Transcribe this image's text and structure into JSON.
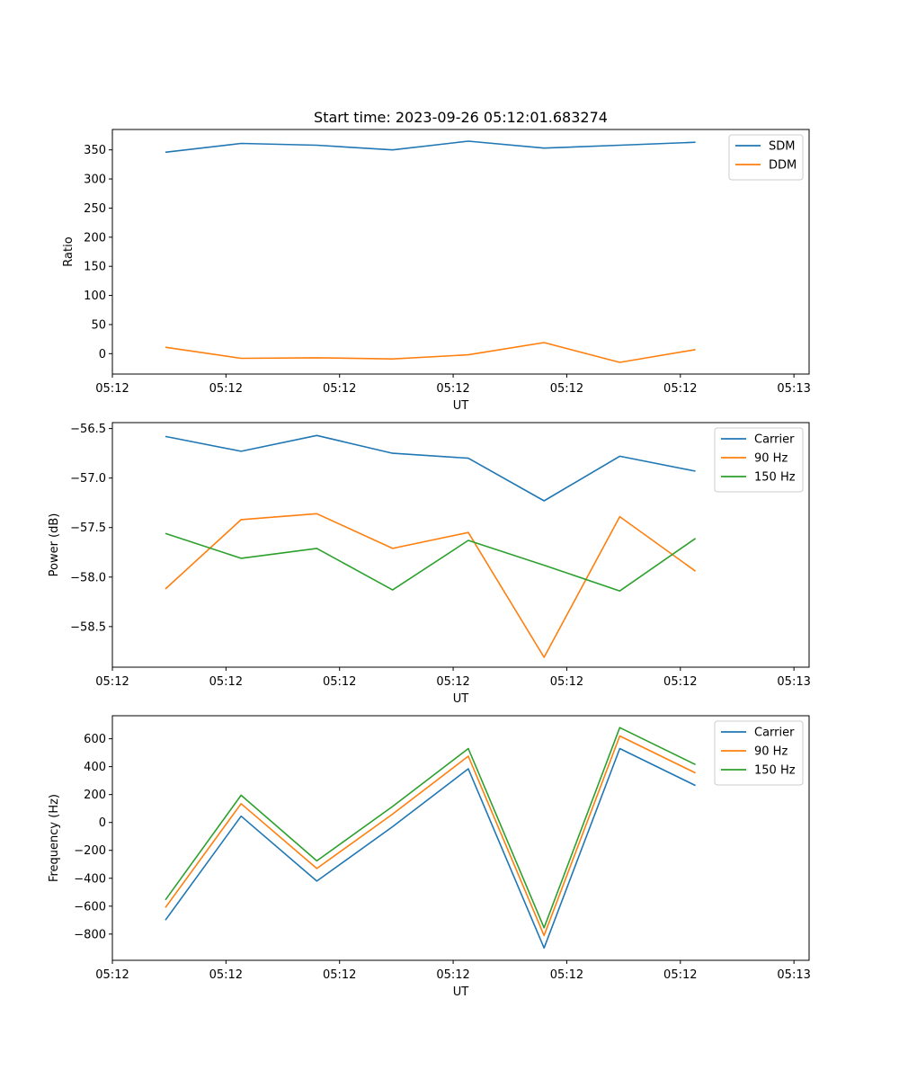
{
  "figure_title": "Start time: 2023-09-26 05:12:01.683274",
  "chart_data": [
    {
      "type": "line",
      "xlabel": "UT",
      "ylabel": "Ratio",
      "x_tick_labels": [
        "05:12",
        "05:12",
        "05:12",
        "05:12",
        "05:12",
        "05:12",
        "05:13"
      ],
      "y_ticks": [
        0,
        50,
        100,
        150,
        200,
        250,
        300,
        350
      ],
      "y_tick_labels": [
        "0",
        "50",
        "100",
        "150",
        "200",
        "250",
        "300",
        "350"
      ],
      "ylim": [
        -35,
        385
      ],
      "x": [
        1,
        2,
        3,
        4,
        5,
        6,
        7,
        8
      ],
      "xlim": [
        0.3,
        9.5
      ],
      "x_tick_positions": [
        0.3,
        1.8,
        3.3,
        4.8,
        6.3,
        7.8,
        9.3
      ],
      "legend_position": "top-right",
      "series": [
        {
          "name": "SDM",
          "color": "#1f77b4",
          "values": [
            346,
            361,
            358,
            350,
            365,
            353,
            358,
            363
          ]
        },
        {
          "name": "DDM",
          "color": "#ff7f0e",
          "values": [
            11,
            -8,
            -7,
            -9,
            -2,
            19,
            -15,
            7
          ]
        }
      ]
    },
    {
      "type": "line",
      "xlabel": "UT",
      "ylabel": "Power (dB)",
      "x_tick_labels": [
        "05:12",
        "05:12",
        "05:12",
        "05:12",
        "05:12",
        "05:12",
        "05:13"
      ],
      "y_ticks": [
        -58.5,
        -58.0,
        -57.5,
        -57.0,
        -56.5
      ],
      "y_tick_labels": [
        "−58.5",
        "−58.0",
        "−57.5",
        "−57.0",
        "−56.5"
      ],
      "ylim": [
        -58.91,
        -56.44
      ],
      "x": [
        1,
        2,
        3,
        4,
        5,
        6,
        7,
        8
      ],
      "xlim": [
        0.3,
        9.5
      ],
      "x_tick_positions": [
        0.3,
        1.8,
        3.3,
        4.8,
        6.3,
        7.8,
        9.3
      ],
      "legend_position": "top-right",
      "series": [
        {
          "name": "Carrier",
          "color": "#1f77b4",
          "values": [
            -56.58,
            -56.73,
            -56.57,
            -56.75,
            -56.8,
            -57.23,
            -56.78,
            -56.93
          ]
        },
        {
          "name": "90 Hz",
          "color": "#ff7f0e",
          "values": [
            -58.12,
            -57.42,
            -57.36,
            -57.71,
            -57.55,
            -58.81,
            -57.39,
            -57.94
          ]
        },
        {
          "name": "150 Hz",
          "color": "#2ca02c",
          "values": [
            -57.56,
            -57.81,
            -57.71,
            -58.13,
            -57.63,
            -57.88,
            -58.14,
            -57.61
          ]
        }
      ]
    },
    {
      "type": "line",
      "xlabel": "UT",
      "ylabel": "Frequency (Hz)",
      "x_tick_labels": [
        "05:12",
        "05:12",
        "05:12",
        "05:12",
        "05:12",
        "05:12",
        "05:13"
      ],
      "y_ticks": [
        -800,
        -600,
        -400,
        -200,
        0,
        200,
        400,
        600
      ],
      "y_tick_labels": [
        "−800",
        "−600",
        "−400",
        "−200",
        "0",
        "200",
        "400",
        "600"
      ],
      "ylim": [
        -988,
        765
      ],
      "x": [
        1,
        2,
        3,
        4,
        5,
        6,
        7,
        8
      ],
      "xlim": [
        0.3,
        9.5
      ],
      "x_tick_positions": [
        0.3,
        1.8,
        3.3,
        4.8,
        6.3,
        7.8,
        9.3
      ],
      "legend_position": "top-right",
      "series": [
        {
          "name": "Carrier",
          "color": "#1f77b4",
          "values": [
            -700,
            45,
            -420,
            -30,
            385,
            -900,
            530,
            265
          ]
        },
        {
          "name": "90 Hz",
          "color": "#ff7f0e",
          "values": [
            -610,
            135,
            -330,
            60,
            475,
            -810,
            620,
            355
          ]
        },
        {
          "name": "150 Hz",
          "color": "#2ca02c",
          "values": [
            -555,
            195,
            -275,
            115,
            530,
            -755,
            680,
            415
          ]
        }
      ]
    }
  ]
}
